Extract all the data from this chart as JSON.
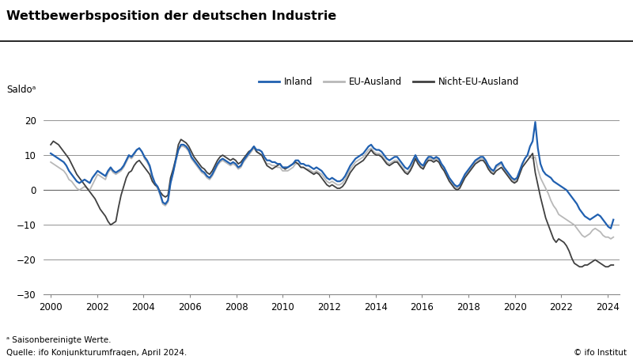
{
  "title": "Wettbewerbsposition der deutschen Industrie",
  "ylabel": "Saldoᵃ",
  "footnote_a": "ᵃ Saisonbereinigte Werte.",
  "footnote_b": "Quelle: ifo Konjunkturumfragen, April 2024.",
  "footnote_c": "© ifo Institut",
  "legend": [
    "Inland",
    "EU-Ausland",
    "Nicht-EU-Ausland"
  ],
  "colors": {
    "inland": "#2060b0",
    "eu": "#b8b8b8",
    "nicht_eu": "#404040"
  },
  "ylim": [
    -30,
    25
  ],
  "yticks": [
    -30,
    -20,
    -10,
    0,
    10,
    20
  ],
  "xlim_min": 1999.7,
  "xlim_max": 2024.5,
  "xticks": [
    2000,
    2002,
    2004,
    2006,
    2008,
    2010,
    2012,
    2014,
    2016,
    2018,
    2020,
    2022,
    2024
  ],
  "t_start": 2000.0,
  "t_end": 2024.25,
  "inland": [
    10.5,
    10.0,
    9.5,
    9.0,
    8.5,
    8.0,
    7.0,
    5.5,
    4.5,
    3.5,
    2.5,
    2.0,
    2.5,
    3.0,
    2.5,
    2.0,
    3.5,
    4.5,
    5.5,
    5.0,
    4.5,
    4.0,
    5.5,
    6.5,
    5.5,
    5.0,
    5.5,
    6.0,
    7.0,
    8.5,
    10.0,
    9.5,
    10.5,
    11.5,
    12.0,
    11.0,
    9.5,
    8.5,
    7.0,
    4.0,
    2.0,
    1.0,
    -1.0,
    -3.5,
    -4.0,
    -3.0,
    2.0,
    5.0,
    8.5,
    11.5,
    13.0,
    13.0,
    12.5,
    11.5,
    9.5,
    8.5,
    7.5,
    6.5,
    5.5,
    5.0,
    4.0,
    3.5,
    4.5,
    6.0,
    7.5,
    8.5,
    9.0,
    8.5,
    8.0,
    7.5,
    8.0,
    7.5,
    6.5,
    7.0,
    8.5,
    9.5,
    10.5,
    11.5,
    12.5,
    11.5,
    11.5,
    11.0,
    9.5,
    8.5,
    8.5,
    8.0,
    8.0,
    7.5,
    7.5,
    6.5,
    6.5,
    6.5,
    7.0,
    7.5,
    8.5,
    8.5,
    7.5,
    7.5,
    7.0,
    7.0,
    6.5,
    6.0,
    6.5,
    6.0,
    5.5,
    4.5,
    3.5,
    3.0,
    3.5,
    3.0,
    2.5,
    2.5,
    3.0,
    4.0,
    5.5,
    7.0,
    8.0,
    9.0,
    9.5,
    10.0,
    10.5,
    11.5,
    12.5,
    13.0,
    12.0,
    11.5,
    11.5,
    11.0,
    10.0,
    9.0,
    8.5,
    9.0,
    9.5,
    9.5,
    8.5,
    7.5,
    6.5,
    6.0,
    7.0,
    8.5,
    10.0,
    8.5,
    7.5,
    7.0,
    8.5,
    9.5,
    9.5,
    9.0,
    9.5,
    9.0,
    7.5,
    6.5,
    5.0,
    3.5,
    2.5,
    1.5,
    1.0,
    1.5,
    3.0,
    4.5,
    5.5,
    6.5,
    7.5,
    8.5,
    9.0,
    9.5,
    9.5,
    8.5,
    7.0,
    6.0,
    5.5,
    7.0,
    7.5,
    8.0,
    6.5,
    5.5,
    4.5,
    3.5,
    3.0,
    3.5,
    5.5,
    7.5,
    9.0,
    10.0,
    12.5,
    14.0,
    19.5,
    12.0,
    7.5,
    5.5,
    4.5,
    4.0,
    3.5,
    2.5,
    2.0,
    1.5,
    1.0,
    0.5,
    0.0,
    -1.0,
    -2.0,
    -3.0,
    -4.0,
    -5.5,
    -6.5,
    -7.5,
    -8.0,
    -8.5,
    -8.0,
    -7.5,
    -7.0,
    -7.5,
    -8.5,
    -9.5,
    -10.5,
    -11.0,
    -8.5
  ],
  "eu_ausland": [
    8.0,
    7.5,
    7.0,
    6.5,
    6.0,
    5.5,
    4.5,
    3.0,
    2.5,
    1.5,
    0.5,
    0.0,
    0.5,
    1.0,
    0.5,
    0.0,
    1.5,
    3.0,
    4.5,
    4.0,
    3.5,
    3.0,
    5.0,
    6.0,
    5.0,
    4.5,
    5.0,
    5.5,
    6.5,
    8.0,
    9.5,
    9.0,
    10.0,
    11.5,
    12.0,
    11.0,
    9.0,
    8.0,
    6.5,
    3.5,
    1.5,
    0.5,
    -1.5,
    -4.0,
    -4.5,
    -3.5,
    2.0,
    5.0,
    8.5,
    11.5,
    12.5,
    12.5,
    12.0,
    11.0,
    9.0,
    8.0,
    7.0,
    6.0,
    5.0,
    4.5,
    3.5,
    3.0,
    4.0,
    5.5,
    7.0,
    8.0,
    8.5,
    8.0,
    7.5,
    7.0,
    7.5,
    7.0,
    6.0,
    6.5,
    8.0,
    9.0,
    10.0,
    11.0,
    12.0,
    11.0,
    10.5,
    10.0,
    8.5,
    7.5,
    7.5,
    7.0,
    7.0,
    6.5,
    6.5,
    5.5,
    5.5,
    5.5,
    6.0,
    6.5,
    7.5,
    7.5,
    6.5,
    6.5,
    6.0,
    6.0,
    5.5,
    5.0,
    5.5,
    5.0,
    4.5,
    3.5,
    2.5,
    2.0,
    2.5,
    2.0,
    1.5,
    1.5,
    2.0,
    3.0,
    4.5,
    6.0,
    7.0,
    8.0,
    8.5,
    9.0,
    9.5,
    10.5,
    11.5,
    12.0,
    11.0,
    10.5,
    10.5,
    10.0,
    9.0,
    8.0,
    7.5,
    8.0,
    8.5,
    8.5,
    7.5,
    6.5,
    5.5,
    5.0,
    6.0,
    7.5,
    9.5,
    8.0,
    7.0,
    6.5,
    8.0,
    9.0,
    9.0,
    8.5,
    9.0,
    8.5,
    7.0,
    6.0,
    4.5,
    3.0,
    2.0,
    1.0,
    0.5,
    1.0,
    2.5,
    4.0,
    5.0,
    6.0,
    7.0,
    8.0,
    8.5,
    9.0,
    9.0,
    8.0,
    6.5,
    5.5,
    5.0,
    6.5,
    7.0,
    7.5,
    6.0,
    5.0,
    4.0,
    3.0,
    2.5,
    3.0,
    5.0,
    7.0,
    9.0,
    10.0,
    9.5,
    9.0,
    9.5,
    6.0,
    3.5,
    2.0,
    0.5,
    -1.0,
    -3.0,
    -4.5,
    -5.5,
    -7.0,
    -7.5,
    -8.0,
    -8.5,
    -9.0,
    -9.5,
    -10.0,
    -11.0,
    -12.0,
    -13.0,
    -13.5,
    -13.0,
    -12.5,
    -11.5,
    -11.0,
    -11.5,
    -12.0,
    -13.0,
    -13.5,
    -13.5,
    -14.0,
    -13.5
  ],
  "nicht_eu_ausland": [
    13.0,
    14.0,
    13.5,
    13.0,
    12.0,
    11.0,
    10.0,
    9.0,
    7.5,
    6.0,
    4.5,
    3.5,
    2.5,
    1.5,
    0.5,
    -0.5,
    -1.5,
    -2.5,
    -4.0,
    -5.5,
    -6.5,
    -7.5,
    -9.0,
    -10.0,
    -9.5,
    -9.0,
    -5.0,
    -1.5,
    1.0,
    3.5,
    5.0,
    5.5,
    7.0,
    8.0,
    8.5,
    7.5,
    6.5,
    5.5,
    4.5,
    2.5,
    1.5,
    1.0,
    -0.5,
    -1.5,
    -2.0,
    -1.5,
    3.5,
    6.0,
    9.0,
    13.0,
    14.5,
    14.0,
    13.5,
    12.5,
    11.0,
    9.5,
    8.5,
    7.5,
    6.5,
    6.0,
    5.0,
    4.5,
    5.5,
    7.0,
    8.5,
    9.5,
    10.0,
    9.5,
    9.0,
    8.5,
    9.0,
    8.5,
    7.5,
    8.0,
    9.0,
    10.0,
    11.0,
    11.5,
    12.5,
    11.0,
    10.5,
    10.0,
    8.5,
    7.0,
    6.5,
    6.0,
    6.5,
    7.0,
    7.5,
    6.5,
    6.0,
    6.5,
    7.0,
    7.5,
    8.0,
    7.5,
    6.5,
    6.5,
    6.0,
    5.5,
    5.0,
    4.5,
    5.0,
    4.5,
    3.5,
    2.5,
    1.5,
    1.0,
    1.5,
    1.0,
    0.5,
    0.5,
    1.0,
    2.0,
    3.5,
    5.0,
    6.0,
    7.0,
    7.5,
    8.0,
    8.5,
    9.5,
    10.5,
    11.5,
    10.5,
    10.0,
    10.0,
    9.5,
    8.5,
    7.5,
    7.0,
    7.5,
    8.0,
    8.0,
    7.0,
    6.0,
    5.0,
    4.5,
    5.5,
    7.0,
    9.0,
    7.5,
    6.5,
    6.0,
    7.5,
    8.5,
    8.5,
    8.0,
    8.5,
    8.0,
    6.5,
    5.5,
    4.0,
    2.5,
    1.5,
    0.5,
    0.0,
    0.5,
    2.0,
    3.5,
    4.5,
    5.5,
    6.5,
    7.5,
    8.0,
    8.5,
    8.5,
    7.5,
    6.0,
    5.0,
    4.5,
    5.5,
    6.0,
    6.5,
    5.5,
    4.5,
    3.5,
    2.5,
    2.0,
    2.5,
    4.5,
    6.5,
    7.5,
    8.5,
    9.5,
    10.5,
    5.0,
    1.5,
    -2.0,
    -5.0,
    -8.0,
    -10.0,
    -12.0,
    -14.0,
    -15.0,
    -14.0,
    -14.5,
    -15.0,
    -16.0,
    -17.5,
    -19.5,
    -21.0,
    -21.5,
    -22.0,
    -22.0,
    -21.5,
    -21.5,
    -21.0,
    -20.5,
    -20.0,
    -20.5,
    -21.0,
    -21.5,
    -22.0,
    -22.0,
    -21.5,
    -21.5
  ]
}
